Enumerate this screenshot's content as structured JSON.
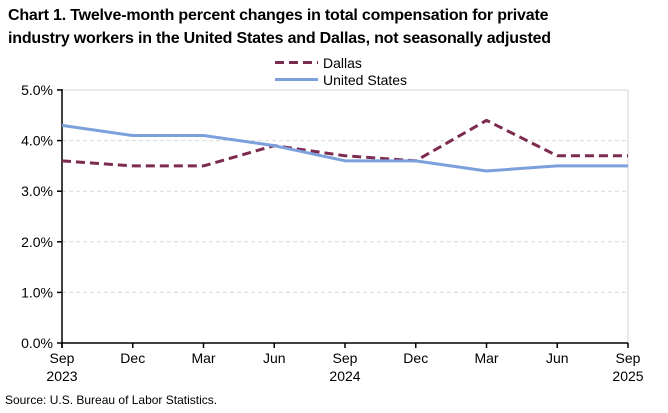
{
  "title_lines": [
    "Chart 1. Twelve-month percent changes in total compensation for private",
    "industry workers in the United States and Dallas, not seasonally adjusted"
  ],
  "source_note": "Source: U.S. Bureau of Labor Statistics.",
  "chart_data": {
    "type": "line",
    "title": "Chart 1. Twelve-month percent changes in total compensation for private industry workers in the United States and Dallas, not seasonally adjusted",
    "categories": [
      "Sep 2023",
      "Dec 2023",
      "Mar 2024",
      "Jun 2024",
      "Sep 2024",
      "Dec 2024",
      "Mar 2025",
      "Jun 2025",
      "Sep 2025"
    ],
    "x_tick_months": [
      "Sep",
      "Dec",
      "Mar",
      "Jun",
      "Sep",
      "Dec",
      "Mar",
      "Jun",
      "Sep"
    ],
    "x_tick_years": [
      "2023",
      "",
      "",
      "",
      "2024",
      "",
      "",
      "",
      "2025"
    ],
    "series": [
      {
        "name": "Dallas",
        "values": [
          3.6,
          3.5,
          3.5,
          3.9,
          3.7,
          3.6,
          4.4,
          3.7,
          3.7
        ],
        "color": "#7D2B50",
        "style": "dashed"
      },
      {
        "name": "United States",
        "values": [
          4.3,
          4.1,
          4.1,
          3.9,
          3.6,
          3.6,
          3.4,
          3.5,
          3.5
        ],
        "color": "#7CA0DC",
        "style": "solid"
      }
    ],
    "unit": "%",
    "ylim": [
      0,
      5
    ],
    "y_tick_values": [
      5,
      4,
      3,
      2,
      1,
      0
    ],
    "y_tick_labels": [
      "5.0%",
      "4.0%",
      "3.0%",
      "2.0%",
      "1.0%",
      "0.0%"
    ],
    "grid": true,
    "legend_position": "top-center",
    "colors": {
      "grid": "#D9D9D9",
      "border": "#D3D3D3",
      "axis": "#000000"
    }
  }
}
